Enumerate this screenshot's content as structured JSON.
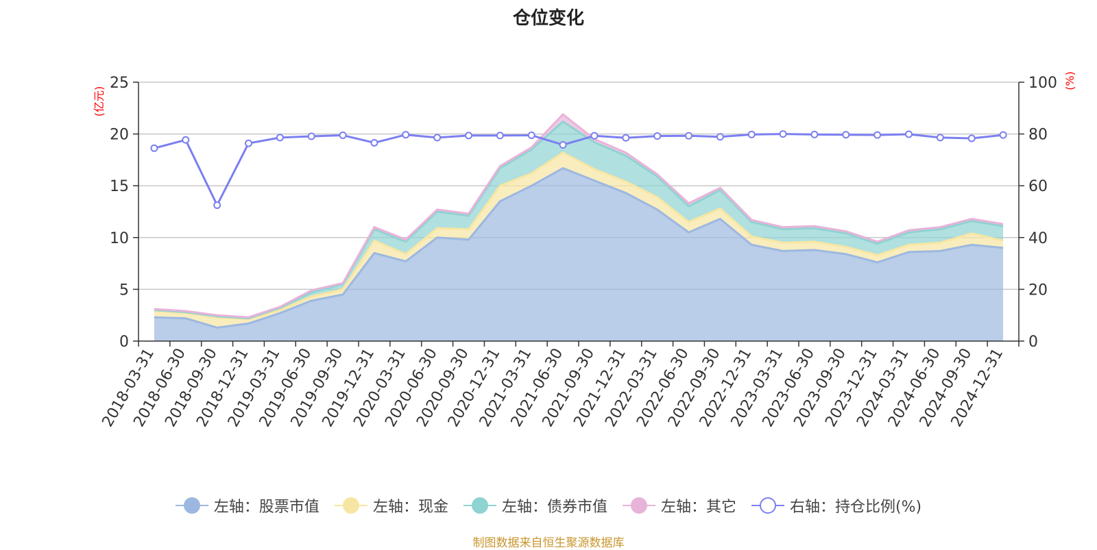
{
  "title": "仓位变化",
  "source": "制图数据来自恒生聚源数据库",
  "colors": {
    "stock": "#9cb8e0",
    "cash": "#f7e6a3",
    "bond": "#8fd3d2",
    "other": "#e8b3d9",
    "ratio": "#7b7ff0",
    "axis_unit": "#ff0000"
  },
  "legend": [
    {
      "label": "左轴：股票市值",
      "color": "#9cb8e0",
      "hollow": false
    },
    {
      "label": "左轴：现金",
      "color": "#f7e6a3",
      "hollow": false
    },
    {
      "label": "左轴：债券市值",
      "color": "#8fd3d2",
      "hollow": false
    },
    {
      "label": "左轴：其它",
      "color": "#e8b3d9",
      "hollow": false
    },
    {
      "label": "右轴：持仓比例(%)",
      "color": "#7b7ff0",
      "hollow": true
    }
  ],
  "chart_data": {
    "type": "area",
    "title": "仓位变化",
    "categories": [
      "2018-03-31",
      "2018-06-30",
      "2018-09-30",
      "2018-12-31",
      "2019-03-31",
      "2019-06-30",
      "2019-09-30",
      "2019-12-31",
      "2020-03-31",
      "2020-06-30",
      "2020-09-30",
      "2020-12-31",
      "2021-03-31",
      "2021-06-30",
      "2021-09-30",
      "2021-12-31",
      "2022-03-31",
      "2022-06-30",
      "2022-09-30",
      "2022-12-31",
      "2023-03-31",
      "2023-06-30",
      "2023-09-30",
      "2023-12-31",
      "2024-03-31",
      "2024-06-30",
      "2024-09-30",
      "2024-12-31"
    ],
    "left_axis": {
      "unit": "(亿元)",
      "ylim": [
        0,
        25
      ],
      "ticks": [
        0,
        5,
        10,
        15,
        20,
        25
      ]
    },
    "right_axis": {
      "unit": "(%)",
      "ylim": [
        0,
        100
      ],
      "ticks": [
        0,
        20,
        40,
        60,
        80,
        100
      ]
    },
    "stacked": true,
    "grid": true,
    "legend_position": "bottom",
    "series": [
      {
        "name": "左轴：股票市值",
        "axis": "left",
        "values": [
          2.3,
          2.2,
          1.3,
          1.7,
          2.7,
          3.9,
          4.5,
          8.5,
          7.7,
          10.0,
          9.8,
          13.5,
          15.0,
          16.7,
          15.5,
          14.3,
          12.7,
          10.5,
          11.8,
          9.3,
          8.7,
          8.8,
          8.4,
          7.6,
          8.6,
          8.7,
          9.3,
          9.0
        ]
      },
      {
        "name": "左轴：现金",
        "axis": "left",
        "values": [
          0.6,
          0.5,
          1.0,
          0.4,
          0.3,
          0.4,
          0.5,
          1.2,
          0.7,
          0.9,
          1.0,
          1.5,
          1.2,
          1.5,
          1.1,
          1.1,
          1.2,
          1.0,
          1.0,
          0.8,
          0.8,
          0.8,
          0.7,
          0.7,
          0.7,
          0.8,
          1.1,
          0.7
        ]
      },
      {
        "name": "左轴：债券市值",
        "axis": "left",
        "values": [
          0.1,
          0.1,
          0.1,
          0.1,
          0.2,
          0.4,
          0.5,
          1.1,
          1.2,
          1.6,
          1.3,
          1.7,
          2.3,
          3.0,
          2.6,
          2.5,
          2.0,
          1.5,
          1.8,
          1.4,
          1.3,
          1.3,
          1.3,
          1.1,
          1.2,
          1.3,
          1.2,
          1.4
        ]
      },
      {
        "name": "左轴：其它",
        "axis": "left",
        "values": [
          0.1,
          0.1,
          0.1,
          0.1,
          0.1,
          0.2,
          0.1,
          0.2,
          0.2,
          0.2,
          0.2,
          0.2,
          0.2,
          0.7,
          0.3,
          0.3,
          0.2,
          0.3,
          0.2,
          0.2,
          0.2,
          0.2,
          0.2,
          0.2,
          0.2,
          0.2,
          0.2,
          0.2
        ]
      },
      {
        "name": "右轴：持仓比例(%)",
        "axis": "right",
        "line": true,
        "values": [
          74.5,
          77.7,
          52.5,
          76.4,
          78.6,
          79.1,
          79.5,
          76.6,
          79.7,
          78.6,
          79.4,
          79.4,
          79.5,
          75.8,
          79.3,
          78.5,
          79.2,
          79.3,
          78.9,
          79.8,
          80.0,
          79.8,
          79.7,
          79.6,
          79.9,
          78.6,
          78.3,
          79.6
        ]
      }
    ]
  }
}
